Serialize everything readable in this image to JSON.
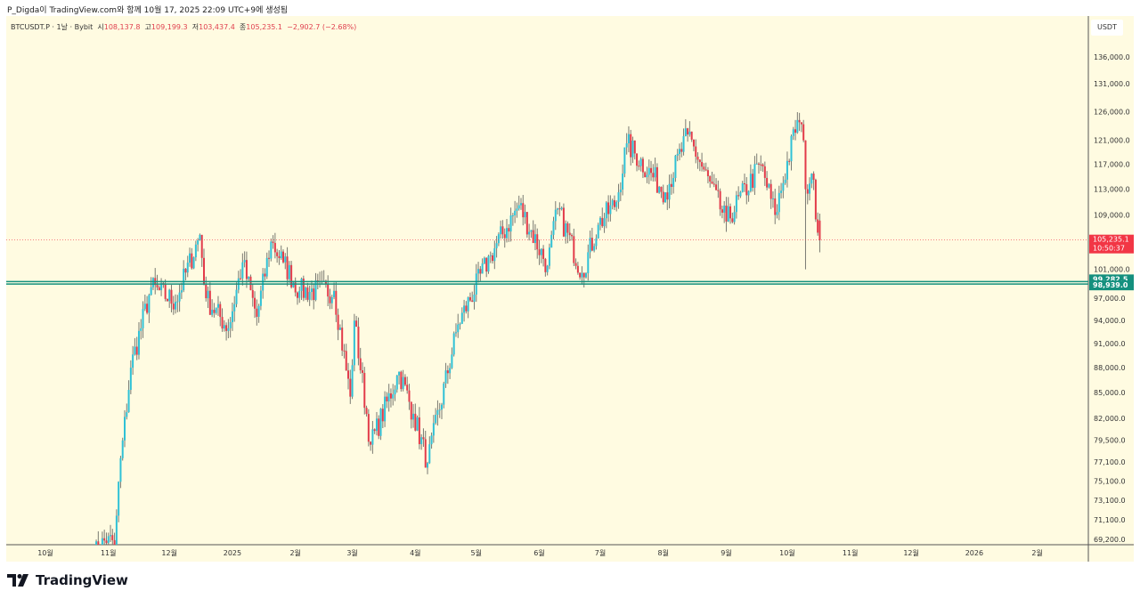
{
  "header": {
    "caption": "P_Digda이 TradingView.com와 함께 10월 17, 2025 22:09 UTC+9에 생성됨"
  },
  "legend": {
    "symbol": "BTCUSDT.P · 1날 · Bybit",
    "open_label": "시",
    "open": "108,137.8",
    "high_label": "고",
    "high": "109,199.3",
    "low_label": "저",
    "low": "103,437.4",
    "close_label": "종",
    "close": "105,235.1",
    "change": "−2,902.7 (−2.68%)"
  },
  "currency": "USDT",
  "colors": {
    "up": "#2fc1d6",
    "down": "#e23b4a",
    "wick": "#7a7a72",
    "hline": "#14907e",
    "price": "#f23645",
    "bg": "#fffbe1"
  },
  "price_tag": {
    "value": "105,235.1",
    "countdown": "10:50:37"
  },
  "hlines": [
    {
      "value": 99282.5,
      "label": "99,282.5"
    },
    {
      "value": 98939.0,
      "label": "98,939.0"
    }
  ],
  "brand": "TradingView",
  "chart_data": {
    "type": "candlestick",
    "scale": "log",
    "y_ticks": [
      {
        "v": 136000,
        "t": "136,000.0"
      },
      {
        "v": 131000,
        "t": "131,000.0"
      },
      {
        "v": 126000,
        "t": "126,000.0"
      },
      {
        "v": 121000,
        "t": "121,000.0"
      },
      {
        "v": 117000,
        "t": "117,000.0"
      },
      {
        "v": 113000,
        "t": "113,000.0"
      },
      {
        "v": 109000,
        "t": "109,000.0"
      },
      {
        "v": 101000,
        "t": "101,000.0"
      },
      {
        "v": 97000,
        "t": "97,000.0"
      },
      {
        "v": 94000,
        "t": "94,000.0"
      },
      {
        "v": 91000,
        "t": "91,000.0"
      },
      {
        "v": 88000,
        "t": "88,000.0"
      },
      {
        "v": 85000,
        "t": "85,000.0"
      },
      {
        "v": 82000,
        "t": "82,000.0"
      },
      {
        "v": 79500,
        "t": "79,500.0"
      },
      {
        "v": 77100,
        "t": "77,100.0"
      },
      {
        "v": 75100,
        "t": "75,100.0"
      },
      {
        "v": 73100,
        "t": "73,100.0"
      },
      {
        "v": 71100,
        "t": "71,100.0"
      },
      {
        "v": 69200,
        "t": "69,200.0"
      }
    ],
    "x_ticks": [
      {
        "d": 0,
        "t": "10월"
      },
      {
        "d": 31,
        "t": "11월"
      },
      {
        "d": 61,
        "t": "12월"
      },
      {
        "d": 92,
        "t": "2025"
      },
      {
        "d": 123,
        "t": "2월"
      },
      {
        "d": 151,
        "t": "3월"
      },
      {
        "d": 182,
        "t": "4월"
      },
      {
        "d": 212,
        "t": "5월"
      },
      {
        "d": 243,
        "t": "6월"
      },
      {
        "d": 273,
        "t": "7월"
      },
      {
        "d": 304,
        "t": "8월"
      },
      {
        "d": 335,
        "t": "9월"
      },
      {
        "d": 365,
        "t": "10월"
      },
      {
        "d": 396,
        "t": "11월"
      },
      {
        "d": 426,
        "t": "12월"
      },
      {
        "d": 457,
        "t": "2026"
      },
      {
        "d": 488,
        "t": "2월"
      }
    ],
    "x_unit": "days since 2024-10-01",
    "close_keypoints": [
      [
        23,
        67500
      ],
      [
        31,
        69500
      ],
      [
        34,
        68000
      ],
      [
        36,
        75000
      ],
      [
        42,
        88000
      ],
      [
        52,
        98500
      ],
      [
        64,
        96500
      ],
      [
        76,
        106000
      ],
      [
        79,
        97000
      ],
      [
        90,
        93000
      ],
      [
        97,
        102000
      ],
      [
        104,
        94500
      ],
      [
        111,
        105000
      ],
      [
        117,
        102000
      ],
      [
        125,
        98000
      ],
      [
        142,
        98000
      ],
      [
        150,
        84500
      ],
      [
        152,
        94000
      ],
      [
        160,
        79000
      ],
      [
        174,
        87500
      ],
      [
        181,
        82500
      ],
      [
        188,
        77000
      ],
      [
        203,
        93500
      ],
      [
        219,
        103000
      ],
      [
        233,
        110500
      ],
      [
        247,
        101500
      ],
      [
        252,
        110000
      ],
      [
        264,
        100500
      ],
      [
        272,
        107500
      ],
      [
        281,
        111000
      ],
      [
        286,
        120500
      ],
      [
        305,
        112500
      ],
      [
        316,
        122000
      ],
      [
        335,
        108000
      ],
      [
        352,
        117000
      ],
      [
        359,
        109000
      ],
      [
        370,
        124500
      ],
      [
        373,
        121000
      ],
      [
        374,
        113000
      ],
      [
        377,
        115500
      ],
      [
        381,
        105235.1
      ]
    ],
    "last_candle": {
      "open": 108137.8,
      "high": 109199.3,
      "low": 103437.4,
      "close": 105235.1
    },
    "flash_low": {
      "day": 374,
      "low": 101000
    }
  }
}
